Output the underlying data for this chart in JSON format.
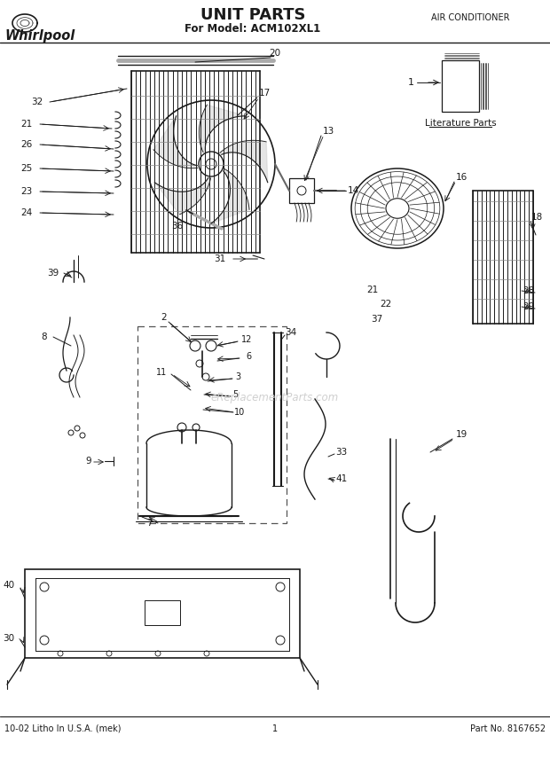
{
  "title": "UNIT PARTS",
  "subtitle": "For Model: ACM102XL1",
  "top_right": "AIR CONDITIONER",
  "bottom_left": "10-02 Litho In U.S.A. (mek)",
  "bottom_center": "1",
  "bottom_right": "Part No. 8167652",
  "brand": "Whirlpool",
  "bg_color": "#ffffff",
  "line_color": "#1a1a1a",
  "watermark": "eReplacementParts.com"
}
